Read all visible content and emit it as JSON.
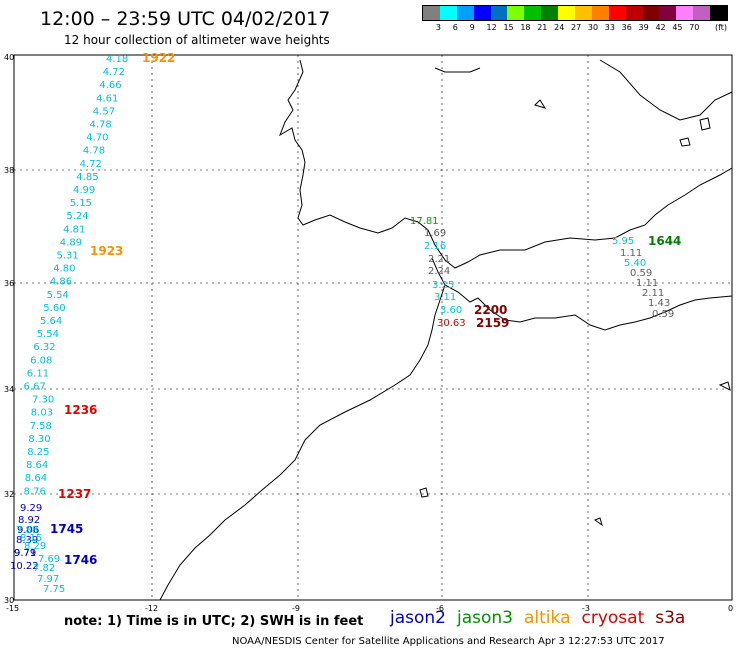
{
  "title": "12:00 – 23:59 UTC 04/02/2017",
  "subtitle": "12 hour collection of altimeter wave heights",
  "legend": {
    "unit": "(ft)",
    "colors": [
      "#808080",
      "#00ffff",
      "#00a0ff",
      "#0000ff",
      "#0070c0",
      "#80ff00",
      "#00c000",
      "#008000",
      "#ffff00",
      "#ffc000",
      "#ff8000",
      "#ff0000",
      "#c00000",
      "#800000",
      "#800040",
      "#ff80ff",
      "#c060c0",
      "#000000"
    ],
    "ticks": [
      "3",
      "6",
      "9",
      "12",
      "15",
      "18",
      "21",
      "24",
      "27",
      "30",
      "33",
      "36",
      "39",
      "42",
      "45",
      "70"
    ]
  },
  "axes": {
    "lat_labels": [
      "40",
      "38",
      "36",
      "34",
      "32",
      "30"
    ],
    "lon_labels": [
      "-15",
      "-12",
      "-9",
      "-6",
      "-3",
      "0"
    ]
  },
  "tracks": [
    {
      "color": "#00c0e0",
      "points": [
        {
          "v": "4.18"
        },
        {
          "v": "4.72"
        },
        {
          "v": "4.66"
        },
        {
          "v": "4.61"
        },
        {
          "v": "4.57"
        },
        {
          "v": "4.78"
        },
        {
          "v": "4.70"
        },
        {
          "v": "4.78"
        },
        {
          "v": "4.72"
        },
        {
          "v": "4.85"
        },
        {
          "v": "4.99"
        },
        {
          "v": "5.15"
        },
        {
          "v": "5.24"
        },
        {
          "v": "4.81"
        },
        {
          "v": "4.89"
        },
        {
          "v": "5.31"
        },
        {
          "v": "4.80"
        },
        {
          "v": "4.86"
        },
        {
          "v": "5.54"
        },
        {
          "v": "5.60"
        },
        {
          "v": "5.64"
        },
        {
          "v": "5.54"
        },
        {
          "v": "6.32"
        },
        {
          "v": "6.08"
        },
        {
          "v": "6.11"
        },
        {
          "v": "6.67"
        },
        {
          "v": "7.30"
        },
        {
          "v": "8.03"
        },
        {
          "v": "7.58"
        },
        {
          "v": "8.30"
        },
        {
          "v": "8.25"
        },
        {
          "v": "8.64"
        },
        {
          "v": "8.64"
        },
        {
          "v": "8.76"
        }
      ]
    }
  ],
  "time_labels": [
    {
      "t": "1922",
      "color": "#ff9000"
    },
    {
      "t": "1923",
      "color": "#ff9000"
    },
    {
      "t": "1236",
      "color": "#e00000"
    },
    {
      "t": "1237",
      "color": "#e00000"
    },
    {
      "t": "1745",
      "color": "#0000c0"
    },
    {
      "t": "1746",
      "color": "#0000c0"
    },
    {
      "t": "1644",
      "color": "#008000"
    },
    {
      "t": "2200",
      "color": "#800000"
    },
    {
      "t": "2159",
      "color": "#800000"
    }
  ],
  "jason2_values": [
    "9.29",
    "8.92",
    "9.06",
    "8.39",
    "9.71",
    "9.79",
    "10.22"
  ],
  "jason2_mixed_cyan": [
    "7.88",
    "8.15",
    "8.29",
    "7.69",
    "7.82",
    "7.97",
    "7.75"
  ],
  "strait_values": [
    {
      "v": "17.81",
      "color": "#00a000"
    },
    {
      "v": "1.69",
      "color": "#606060"
    },
    {
      "v": "2.16",
      "color": "#00c0e0"
    },
    {
      "v": "2.21",
      "color": "#606060"
    },
    {
      "v": "2.24",
      "color": "#606060"
    },
    {
      "v": "3.25",
      "color": "#00c0e0"
    },
    {
      "v": "3.11",
      "color": "#00c0e0"
    },
    {
      "v": "3.60",
      "color": "#00c0e0"
    },
    {
      "v": "30.63",
      "color": "#e00000"
    }
  ],
  "med_values": [
    {
      "v": "5.95",
      "color": "#00c0e0"
    },
    {
      "v": "1.11",
      "color": "#606060"
    },
    {
      "v": "5.40",
      "color": "#00c0e0"
    },
    {
      "v": "0.59",
      "color": "#606060"
    },
    {
      "v": "1.11",
      "color": "#606060"
    },
    {
      "v": "2.11",
      "color": "#606060"
    },
    {
      "v": "1.43",
      "color": "#606060"
    },
    {
      "v": "0.59",
      "color": "#606060"
    }
  ],
  "footer": {
    "note": "note:  1) Time is in UTC;  2) SWH is in feet",
    "satellites": [
      {
        "name": "jason2",
        "color": "#0000c0"
      },
      {
        "name": "jason3",
        "color": "#009000"
      },
      {
        "name": "altika",
        "color": "#ff9000"
      },
      {
        "name": "cryosat",
        "color": "#e00000"
      },
      {
        "name": "s3a",
        "color": "#800000"
      }
    ],
    "credit": "NOAA/NESDIS Center for Satellite Applications and Research     Apr  3 12:27:53 UTC 2017"
  }
}
